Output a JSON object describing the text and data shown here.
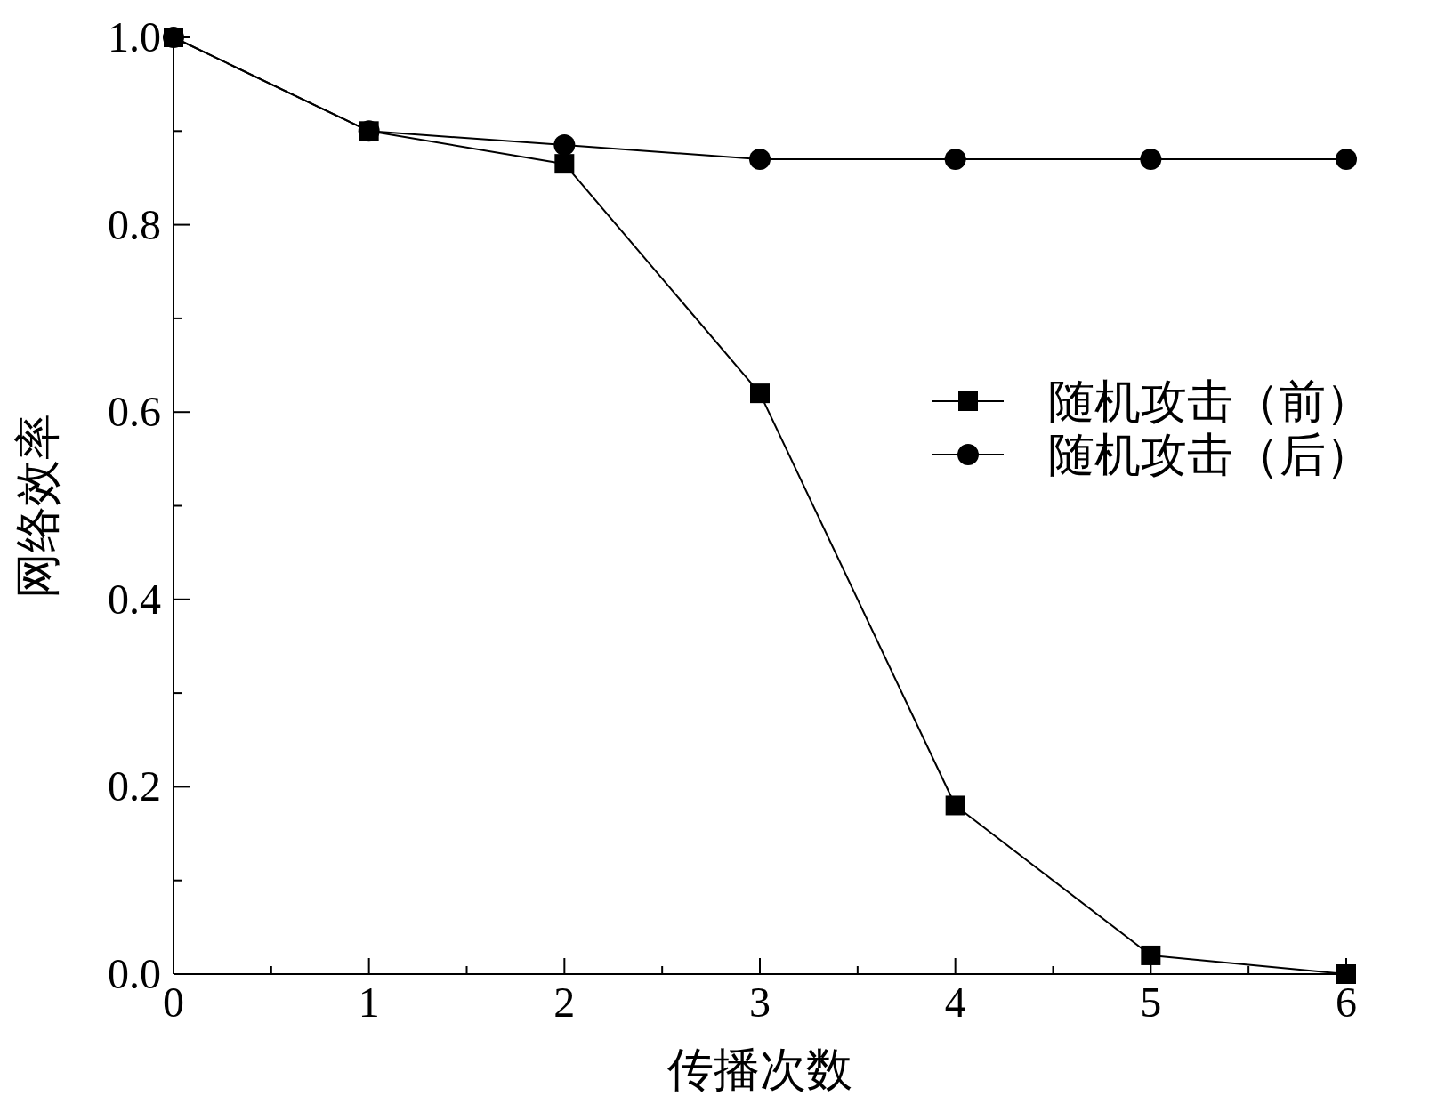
{
  "chart_data": {
    "type": "line",
    "xlabel": "传播次数",
    "ylabel": "网络效率",
    "x": [
      0,
      1,
      2,
      3,
      4,
      5,
      6
    ],
    "series": [
      {
        "name": "随机攻击（前）",
        "color": "#000000",
        "marker": "square",
        "values": [
          1.0,
          0.9,
          0.865,
          0.62,
          0.18,
          0.02,
          0
        ]
      },
      {
        "name": "随机攻击（后）",
        "color": "#000000",
        "marker": "circle",
        "values": [
          1.0,
          0.9,
          0.885,
          0.87,
          0.87,
          0.87,
          0.87
        ]
      }
    ],
    "xlim": [
      0,
      6
    ],
    "xticks": [
      0,
      {
        "value": 0.5,
        "label": null
      },
      1,
      {
        "value": 1.5,
        "label": null
      },
      2,
      {
        "value": 2.5,
        "label": null
      },
      3,
      {
        "value": 3.5,
        "label": null
      },
      4,
      {
        "value": 4.5,
        "label": null
      },
      5,
      {
        "value": 5.5,
        "label": null
      },
      6
    ],
    "ylim": [
      0,
      1
    ],
    "yticks": [
      {
        "value": 0,
        "label": "0.0"
      },
      {
        "value": 0.1,
        "label": null
      },
      0.2,
      {
        "value": 0.3,
        "label": null
      },
      0.4,
      {
        "value": 0.5,
        "label": null
      },
      0.6,
      {
        "value": 0.7,
        "label": null
      },
      0.8,
      {
        "value": 0.9,
        "label": null
      },
      {
        "value": 1,
        "label": "1.0"
      }
    ],
    "legend": "right",
    "grid": false,
    "line_style": "solid"
  }
}
